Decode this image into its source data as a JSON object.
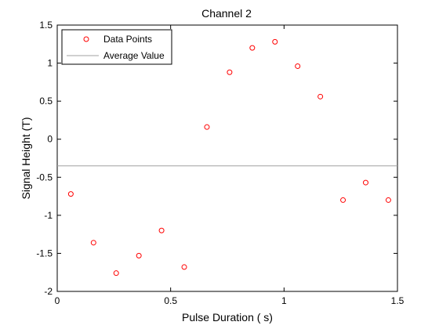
{
  "chart_data": {
    "type": "scatter",
    "title": "Channel 2",
    "xlabel": "Pulse Duration (   s)",
    "ylabel": "Signal Height (T)",
    "xlim": [
      0,
      1.5
    ],
    "ylim": [
      -2,
      1.5
    ],
    "xticks": [
      0,
      0.5,
      1,
      1.5
    ],
    "xtick_labels": [
      "0",
      "0.5",
      "1",
      "1.5"
    ],
    "yticks": [
      -2,
      -1.5,
      -1,
      -0.5,
      0,
      0.5,
      1,
      1.5
    ],
    "ytick_labels": [
      "-2",
      "-1.5",
      "-1",
      "-0.5",
      "0",
      "0.5",
      "1",
      "1.5"
    ],
    "grid": false,
    "legend_position": "top-left",
    "series": [
      {
        "name": "Data Points",
        "color": "#ff0000",
        "marker": "open-circle",
        "x": [
          0.06,
          0.16,
          0.26,
          0.36,
          0.46,
          0.56,
          0.66,
          0.76,
          0.86,
          0.96,
          1.06,
          1.16,
          1.26,
          1.36,
          1.46
        ],
        "y": [
          -0.72,
          -1.36,
          -1.76,
          -1.53,
          -1.2,
          -1.68,
          0.16,
          0.88,
          1.2,
          1.28,
          0.96,
          0.56,
          -0.8,
          -0.57,
          -0.8
        ]
      },
      {
        "name": "Average Value",
        "color": "#a0a0a0",
        "type": "hline",
        "y": -0.35
      }
    ]
  }
}
